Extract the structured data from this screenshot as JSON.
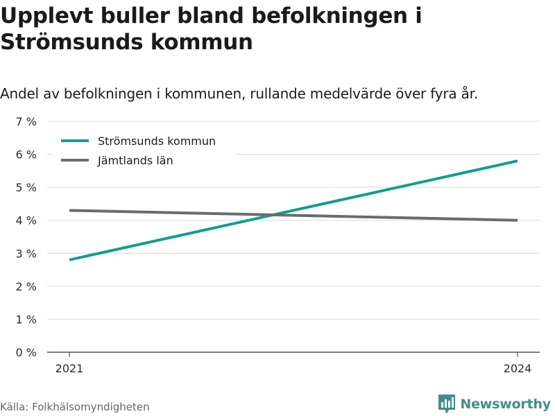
{
  "title": "Upplevt buller bland befolkningen i Strömsunds kommun",
  "subtitle": "Andel av befolkningen i kommunen, rullande medelvärde över fyra år.",
  "source": "Källa: Folkhälsomyndigheten",
  "brand": {
    "name": "Newsworthy",
    "icon": "newsworthy-logo-icon",
    "color": "#3f8f88"
  },
  "chart_data": {
    "type": "line",
    "title": "Upplevt buller bland befolkningen i Strömsunds kommun",
    "subtitle": "Andel av befolkningen i kommunen, rullande medelvärde över fyra år.",
    "xlabel": "",
    "ylabel": "",
    "x": [
      "2021",
      "2024"
    ],
    "x_ticks": [
      "2021",
      "2024"
    ],
    "ylim": [
      0,
      7
    ],
    "y_ticks": [
      0,
      1,
      2,
      3,
      4,
      5,
      6,
      7
    ],
    "y_tick_labels": [
      "0 %",
      "1 %",
      "2 %",
      "3 %",
      "4 %",
      "5 %",
      "6 %",
      "7 %"
    ],
    "grid": true,
    "legend_position": "top-left",
    "series": [
      {
        "name": "Strömsunds kommun",
        "color": "#0f9e91",
        "values": [
          2.8,
          5.8
        ]
      },
      {
        "name": "Jämtlands län",
        "color": "#6b6a70",
        "values": [
          4.3,
          4.0
        ]
      }
    ]
  }
}
